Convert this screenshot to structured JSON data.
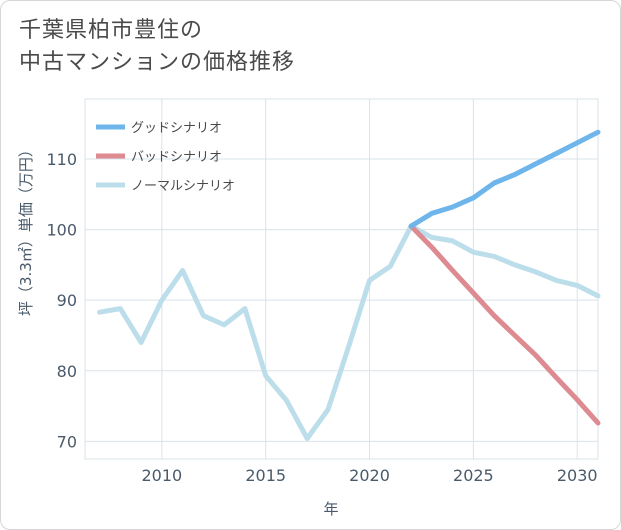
{
  "title": {
    "line1": "千葉県柏市豊住の",
    "line2": "中古マンションの価格推移"
  },
  "chart_data": {
    "type": "line",
    "xlabel": "年",
    "ylabel": "坪（3.3㎡）単価（万円）",
    "xlim": [
      2006.3,
      2031
    ],
    "ylim": [
      67.5,
      118.5
    ],
    "xticks": [
      2010,
      2015,
      2020,
      2025,
      2030
    ],
    "yticks": [
      70,
      80,
      90,
      100,
      110
    ],
    "grid": true,
    "legend_position": "top-left",
    "series": [
      {
        "name": "グッドシナリオ",
        "color": "#6db5ea",
        "x": [
          2022,
          2023,
          2024,
          2025,
          2026,
          2027,
          2028,
          2029,
          2030,
          2031
        ],
        "y": [
          100.5,
          102.3,
          103.2,
          104.5,
          106.6,
          107.8,
          109.3,
          110.8,
          112.3,
          113.8
        ]
      },
      {
        "name": "バッドシナリオ",
        "color": "#dd8a91",
        "x": [
          2022,
          2023,
          2024,
          2025,
          2026,
          2027,
          2028,
          2029,
          2030,
          2031
        ],
        "y": [
          100.5,
          97.5,
          94.2,
          91.0,
          87.8,
          85.0,
          82.2,
          79.0,
          75.9,
          72.6
        ]
      },
      {
        "name": "ノーマルシナリオ",
        "color": "#bcdeeb",
        "x": [
          2007,
          2008,
          2009,
          2010,
          2011,
          2012,
          2013,
          2014,
          2015,
          2016,
          2017,
          2018,
          2019,
          2020,
          2021,
          2022,
          2023,
          2024,
          2025,
          2026,
          2027,
          2028,
          2029,
          2030,
          2031
        ],
        "y": [
          88.3,
          88.8,
          84.0,
          90.0,
          94.2,
          87.8,
          86.5,
          88.8,
          79.3,
          75.8,
          70.4,
          74.5,
          83.5,
          92.8,
          94.8,
          100.5,
          98.9,
          98.4,
          96.8,
          96.2,
          95.0,
          94.0,
          92.8,
          92.1,
          90.6
        ]
      }
    ]
  }
}
